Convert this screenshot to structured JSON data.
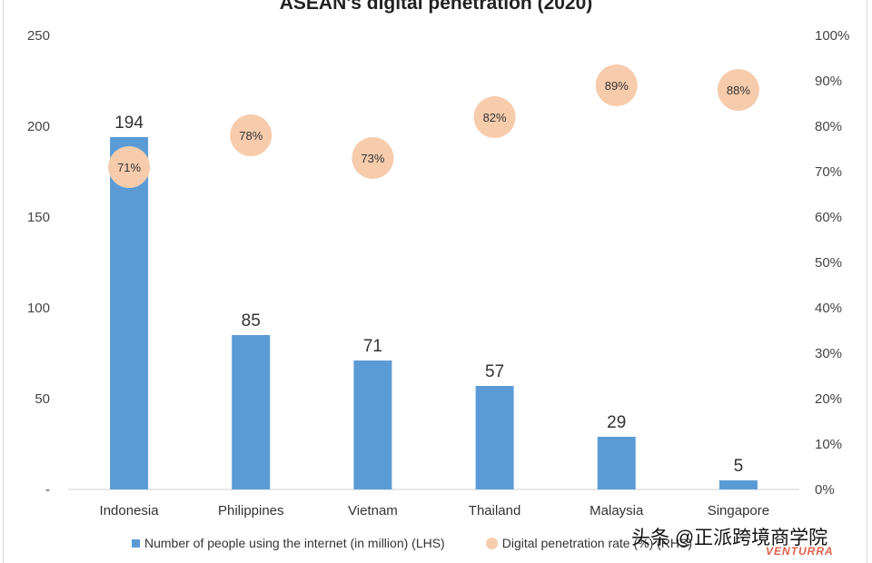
{
  "chart_data": {
    "type": "bar",
    "title": "ASEAN's digital penetration (2020)",
    "categories": [
      "Indonesia",
      "Philippines",
      "Vietnam",
      "Thailand",
      "Malaysia",
      "Singapore"
    ],
    "series": [
      {
        "name": "Number of people using the internet (in million) (LHS)",
        "type": "bar",
        "axis": "left",
        "values": [
          194,
          85,
          71,
          57,
          29,
          5
        ],
        "labels": [
          "194",
          "85",
          "71",
          "57",
          "29",
          "5"
        ],
        "color": "#5b9bd5"
      },
      {
        "name": "Digital penetration rate (%) (RHS)",
        "type": "scatter",
        "axis": "right",
        "values": [
          71,
          78,
          73,
          82,
          89,
          88
        ],
        "labels": [
          "71%",
          "78%",
          "73%",
          "82%",
          "89%",
          "88%"
        ],
        "color": "#f6ccac"
      }
    ],
    "y_left": {
      "ylim": [
        0,
        250
      ],
      "ticks": [
        "-",
        "50",
        "100",
        "150",
        "200",
        "250"
      ]
    },
    "y_right": {
      "ylim": [
        0,
        100
      ],
      "ticks": [
        "0%",
        "10%",
        "20%",
        "30%",
        "40%",
        "50%",
        "60%",
        "70%",
        "80%",
        "90%",
        "100%"
      ]
    },
    "grid": false,
    "legend_position": "bottom"
  },
  "legend": {
    "bar_label": "Number of people using the internet (in million) (LHS)",
    "dot_label": "Digital penetration rate (%) (RHS)"
  },
  "watermark": "头条 @正派跨境商学院",
  "logo": "VENTURRA"
}
